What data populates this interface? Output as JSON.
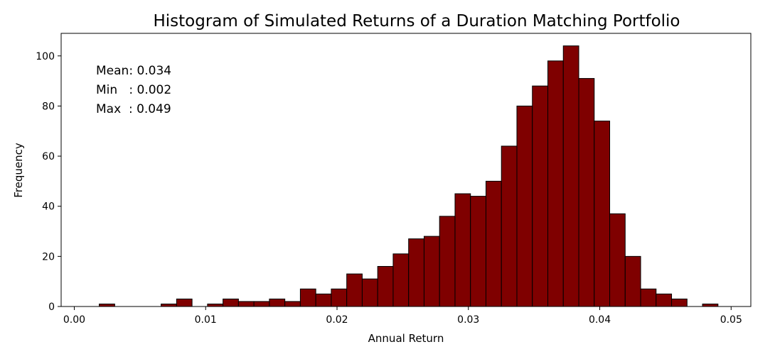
{
  "chart_data": {
    "type": "bar",
    "title": "Histogram of Simulated Returns of a Duration Matching Portfolio",
    "xlabel": "Annual Return",
    "ylabel": "Frequency",
    "xlim": [
      -0.001,
      0.0515
    ],
    "ylim": [
      0,
      109
    ],
    "grid": false,
    "x_ticks": [
      {
        "value": 0.0,
        "label": "0.00"
      },
      {
        "value": 0.01,
        "label": "0.01"
      },
      {
        "value": 0.02,
        "label": "0.02"
      },
      {
        "value": 0.03,
        "label": "0.03"
      },
      {
        "value": 0.04,
        "label": "0.04"
      },
      {
        "value": 0.05,
        "label": "0.05"
      }
    ],
    "y_ticks": [
      {
        "value": 0,
        "label": "0"
      },
      {
        "value": 20,
        "label": "20"
      },
      {
        "value": 40,
        "label": "40"
      },
      {
        "value": 60,
        "label": "60"
      },
      {
        "value": 80,
        "label": "80"
      },
      {
        "value": 100,
        "label": "100"
      }
    ],
    "bin_start": 0.0019,
    "bin_width": 0.0011775,
    "values": [
      1,
      0,
      0,
      0,
      1,
      3,
      0,
      1,
      3,
      2,
      2,
      3,
      2,
      7,
      5,
      7,
      13,
      11,
      16,
      21,
      27,
      28,
      36,
      45,
      44,
      50,
      64,
      80,
      88,
      98,
      104,
      91,
      74,
      37,
      20,
      7,
      5,
      3,
      0,
      1
    ],
    "bar_color": "#7f0000",
    "edge_color": "#000000",
    "annotations": [
      {
        "label": "Mean: 0.034"
      },
      {
        "label": "Min   : 0.002"
      },
      {
        "label": "Max  : 0.049"
      }
    ]
  }
}
